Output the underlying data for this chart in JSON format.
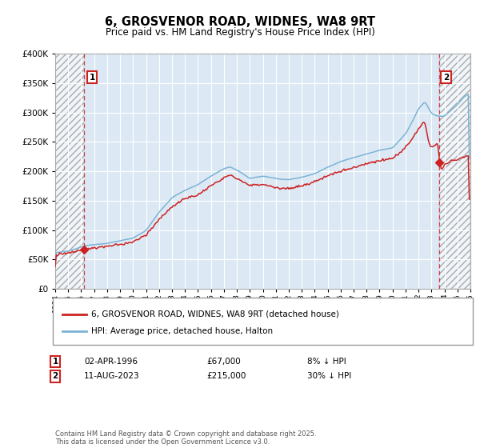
{
  "title": "6, GROSVENOR ROAD, WIDNES, WA8 9RT",
  "subtitle": "Price paid vs. HM Land Registry's House Price Index (HPI)",
  "ylim": [
    0,
    400000
  ],
  "yticks": [
    0,
    50000,
    100000,
    150000,
    200000,
    250000,
    300000,
    350000,
    400000
  ],
  "xstart_year": 1994,
  "xend_year": 2026,
  "hpi_color": "#7ab3d4",
  "price_color": "#cc2222",
  "vline_color": "#cc2222",
  "annotation1_year": 1996.25,
  "annotation1_price": 67000,
  "annotation2_year": 2023.62,
  "annotation2_price": 215000,
  "legend_label1": "6, GROSVENOR ROAD, WIDNES, WA8 9RT (detached house)",
  "legend_label2": "HPI: Average price, detached house, Halton",
  "table_row1": [
    "1",
    "02-APR-1996",
    "£67,000",
    "8% ↓ HPI"
  ],
  "table_row2": [
    "2",
    "11-AUG-2023",
    "£215,000",
    "30% ↓ HPI"
  ],
  "footer": "Contains HM Land Registry data © Crown copyright and database right 2025.\nThis data is licensed under the Open Government Licence v3.0.",
  "bg_color": "#ffffff",
  "plot_bg_color": "#dce9f5",
  "grid_color": "#ffffff",
  "box_edge_color": "#cc2222"
}
